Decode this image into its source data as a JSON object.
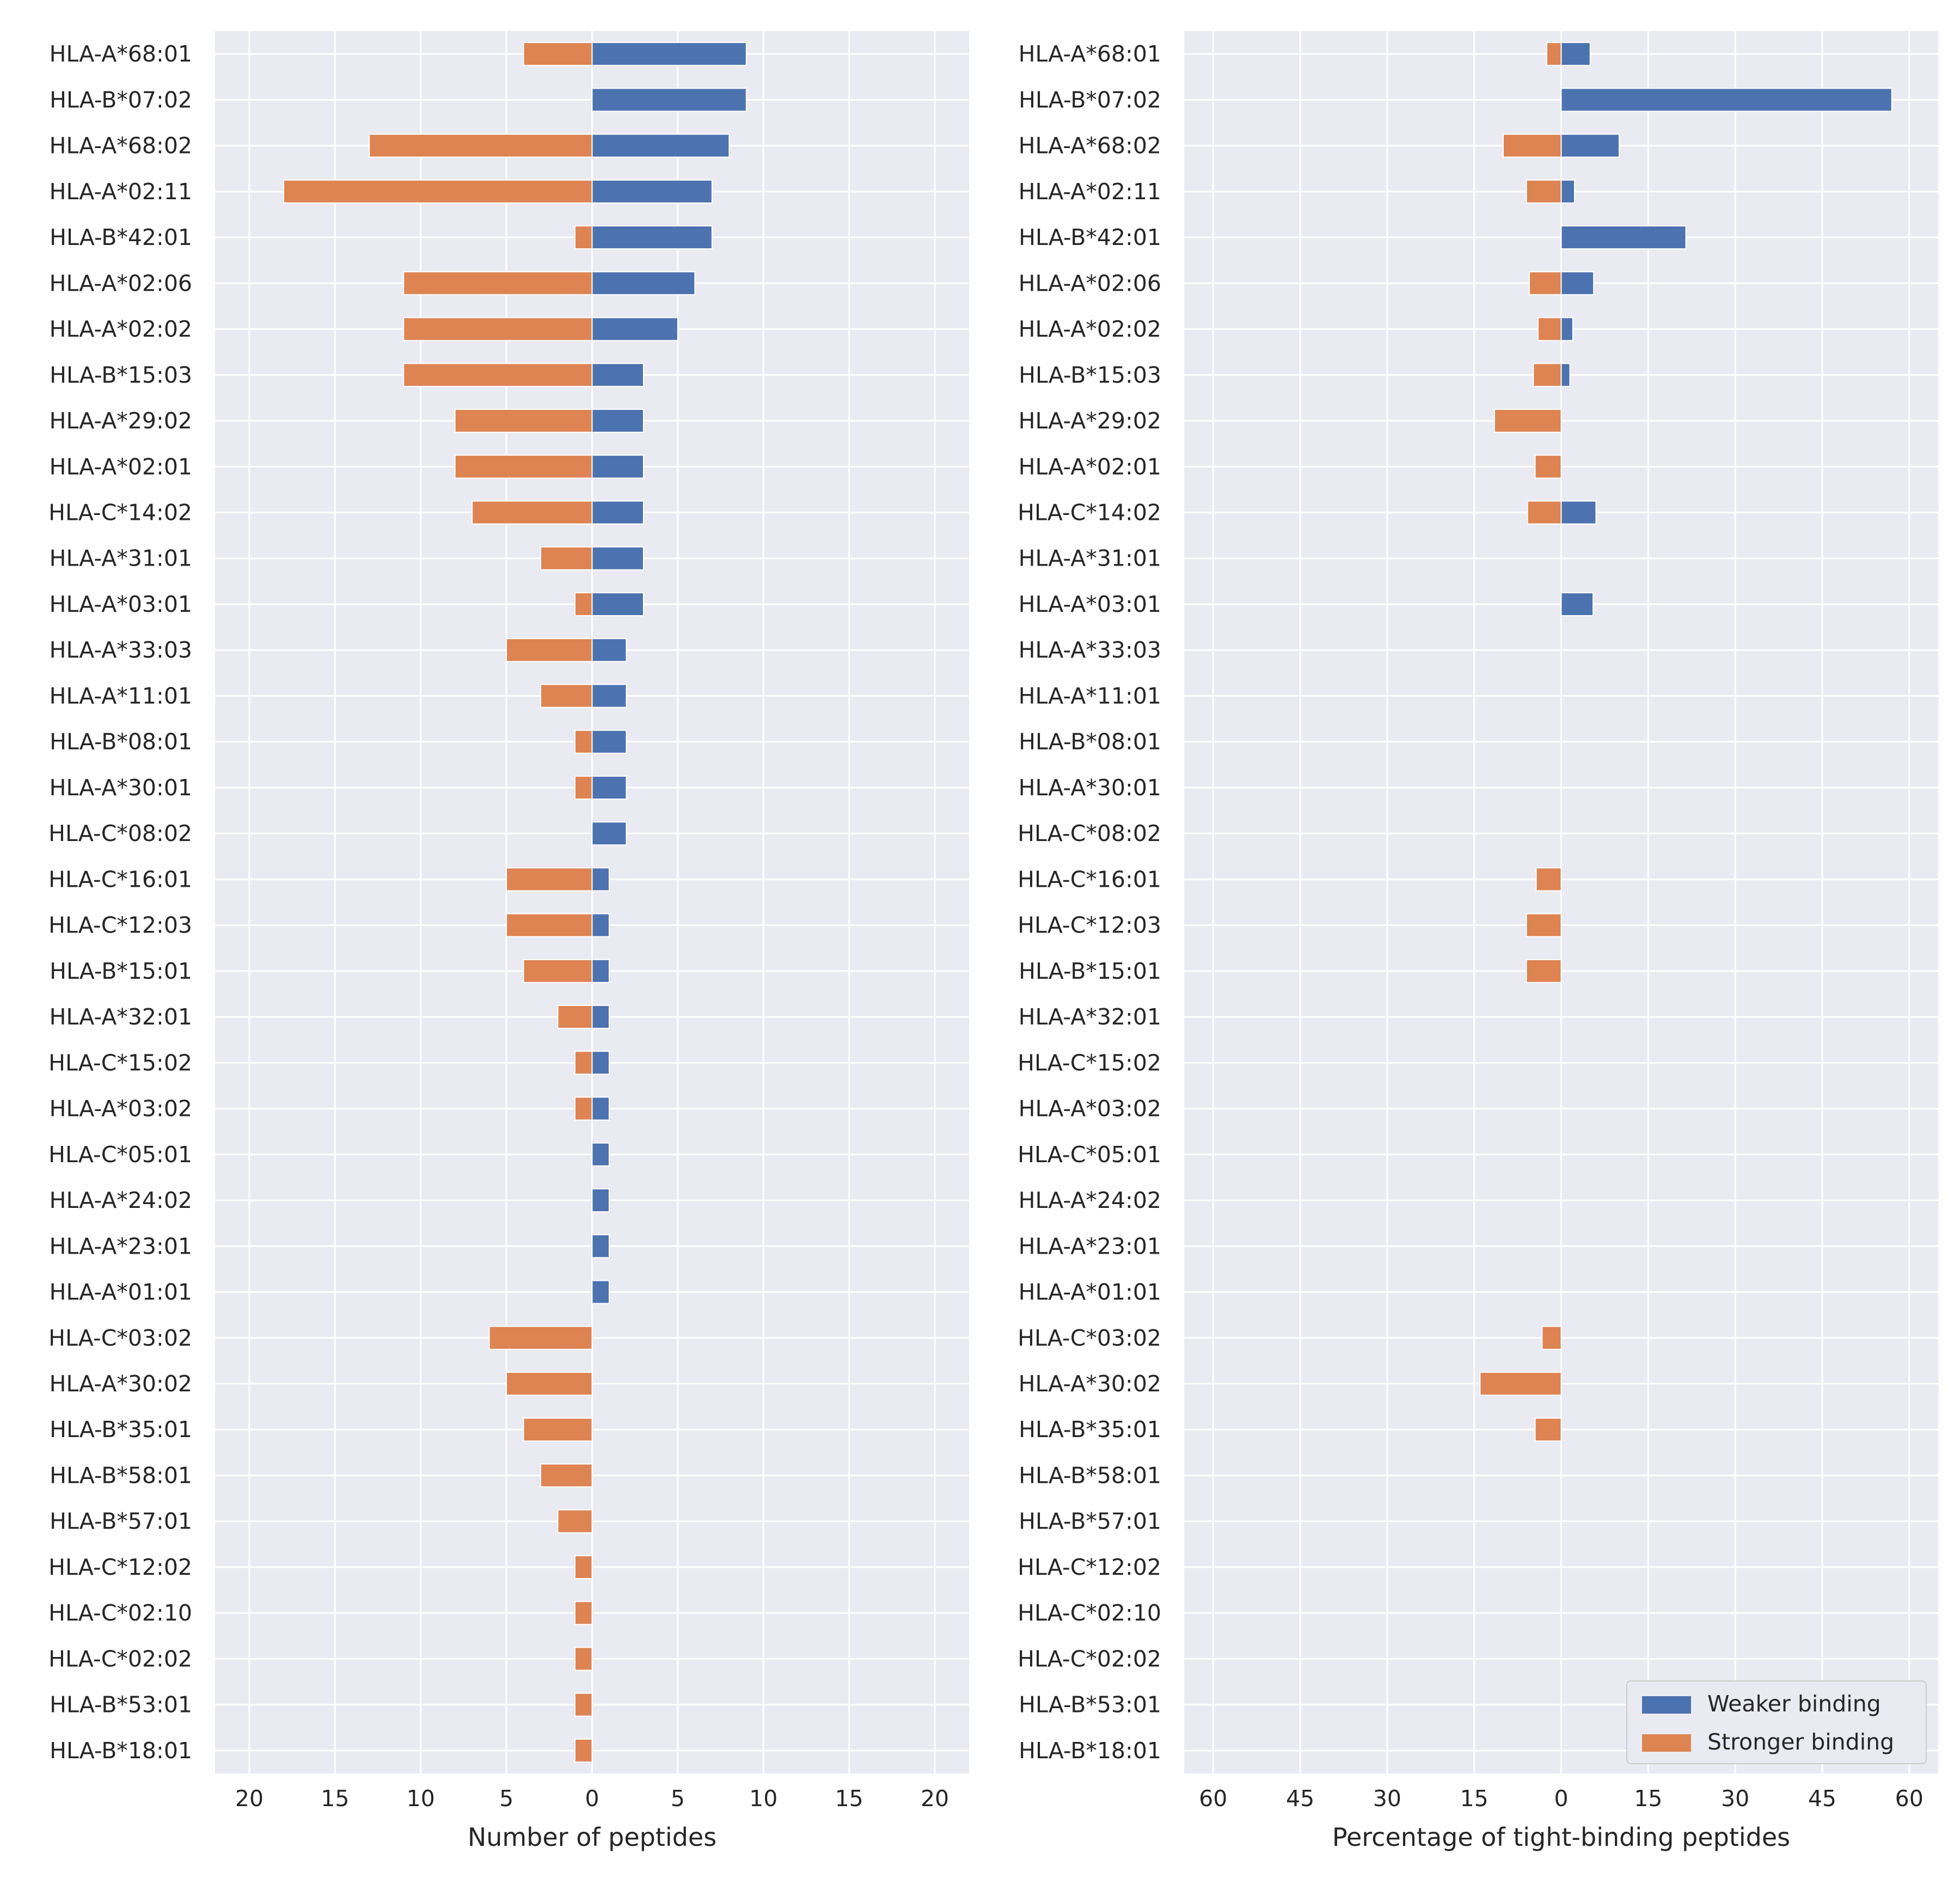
{
  "chart_data": [
    {
      "type": "bar",
      "orientation": "horizontal",
      "title": "",
      "xlabel": "Number of peptides",
      "ylabel": "",
      "xlim": [
        -22,
        22
      ],
      "xticks": [
        -20,
        -15,
        -10,
        -5,
        0,
        5,
        10,
        15,
        20
      ],
      "xtick_labels": [
        "20",
        "15",
        "10",
        "5",
        "0",
        "5",
        "10",
        "15",
        "20"
      ],
      "grid": true,
      "categories": [
        "HLA-A*68:01",
        "HLA-B*07:02",
        "HLA-A*68:02",
        "HLA-A*02:11",
        "HLA-B*42:01",
        "HLA-A*02:06",
        "HLA-A*02:02",
        "HLA-B*15:03",
        "HLA-A*29:02",
        "HLA-A*02:01",
        "HLA-C*14:02",
        "HLA-A*31:01",
        "HLA-A*03:01",
        "HLA-A*33:03",
        "HLA-A*11:01",
        "HLA-B*08:01",
        "HLA-A*30:01",
        "HLA-C*08:02",
        "HLA-C*16:01",
        "HLA-C*12:03",
        "HLA-B*15:01",
        "HLA-A*32:01",
        "HLA-C*15:02",
        "HLA-A*03:02",
        "HLA-C*05:01",
        "HLA-A*24:02",
        "HLA-A*23:01",
        "HLA-A*01:01",
        "HLA-C*03:02",
        "HLA-A*30:02",
        "HLA-B*35:01",
        "HLA-B*58:01",
        "HLA-B*57:01",
        "HLA-C*12:02",
        "HLA-C*02:10",
        "HLA-C*02:02",
        "HLA-B*53:01",
        "HLA-B*18:01"
      ],
      "series": [
        {
          "name": "Weaker binding",
          "color": "#4c72b0",
          "values": [
            9,
            9,
            8,
            7,
            7,
            6,
            5,
            3,
            3,
            3,
            3,
            3,
            3,
            2,
            2,
            2,
            2,
            2,
            1,
            1,
            1,
            1,
            1,
            1,
            1,
            1,
            1,
            1,
            0,
            0,
            0,
            0,
            0,
            0,
            0,
            0,
            0,
            0
          ]
        },
        {
          "name": "Stronger binding",
          "color": "#dd8452",
          "values": [
            -4,
            0,
            -13,
            -18,
            -1,
            -11,
            -11,
            -11,
            -8,
            -8,
            -7,
            -3,
            -1,
            -5,
            -3,
            -1,
            -1,
            0,
            -5,
            -5,
            -4,
            -2,
            -1,
            -1,
            0,
            0,
            0,
            0,
            -6,
            -5,
            -4,
            -3,
            -2,
            -1,
            -1,
            -1,
            -1,
            -1
          ]
        }
      ]
    },
    {
      "type": "bar",
      "orientation": "horizontal",
      "title": "",
      "xlabel": "Percentage of tight-binding peptides",
      "ylabel": "",
      "xlim": [
        -65,
        65
      ],
      "xticks": [
        -60,
        -45,
        -30,
        -15,
        0,
        15,
        30,
        45,
        60
      ],
      "xtick_labels": [
        "60",
        "45",
        "30",
        "15",
        "0",
        "15",
        "30",
        "45",
        "60"
      ],
      "grid": true,
      "legend_position": "bottom-right",
      "categories": [
        "HLA-A*68:01",
        "HLA-B*07:02",
        "HLA-A*68:02",
        "HLA-A*02:11",
        "HLA-B*42:01",
        "HLA-A*02:06",
        "HLA-A*02:02",
        "HLA-B*15:03",
        "HLA-A*29:02",
        "HLA-A*02:01",
        "HLA-C*14:02",
        "HLA-A*31:01",
        "HLA-A*03:01",
        "HLA-A*33:03",
        "HLA-A*11:01",
        "HLA-B*08:01",
        "HLA-A*30:01",
        "HLA-C*08:02",
        "HLA-C*16:01",
        "HLA-C*12:03",
        "HLA-B*15:01",
        "HLA-A*32:01",
        "HLA-C*15:02",
        "HLA-A*03:02",
        "HLA-C*05:01",
        "HLA-A*24:02",
        "HLA-A*23:01",
        "HLA-A*01:01",
        "HLA-C*03:02",
        "HLA-A*30:02",
        "HLA-B*35:01",
        "HLA-B*58:01",
        "HLA-B*57:01",
        "HLA-C*12:02",
        "HLA-C*02:10",
        "HLA-C*02:02",
        "HLA-B*53:01",
        "HLA-B*18:01"
      ],
      "series": [
        {
          "name": "Weaker binding",
          "color": "#4c72b0",
          "values": [
            5,
            57,
            10,
            2.3,
            21.5,
            5.6,
            2,
            1.5,
            0,
            0,
            6,
            0,
            5.5,
            0,
            0,
            0,
            0,
            0,
            0,
            0,
            0,
            0,
            0,
            0,
            0,
            0,
            0,
            0,
            0,
            0,
            0,
            0,
            0,
            0,
            0,
            0,
            0,
            0
          ]
        },
        {
          "name": "Stronger binding",
          "color": "#dd8452",
          "values": [
            -2.5,
            0,
            -10,
            -6,
            0,
            -5.5,
            -4,
            -4.8,
            -11.5,
            -4.5,
            -5.8,
            0,
            0,
            0,
            0,
            0,
            0,
            0,
            -4.3,
            -6,
            -6,
            0,
            0,
            0,
            0,
            0,
            0,
            0,
            -3.3,
            -14,
            -4.5,
            0,
            0,
            0,
            0,
            0,
            0,
            0
          ]
        }
      ]
    }
  ]
}
